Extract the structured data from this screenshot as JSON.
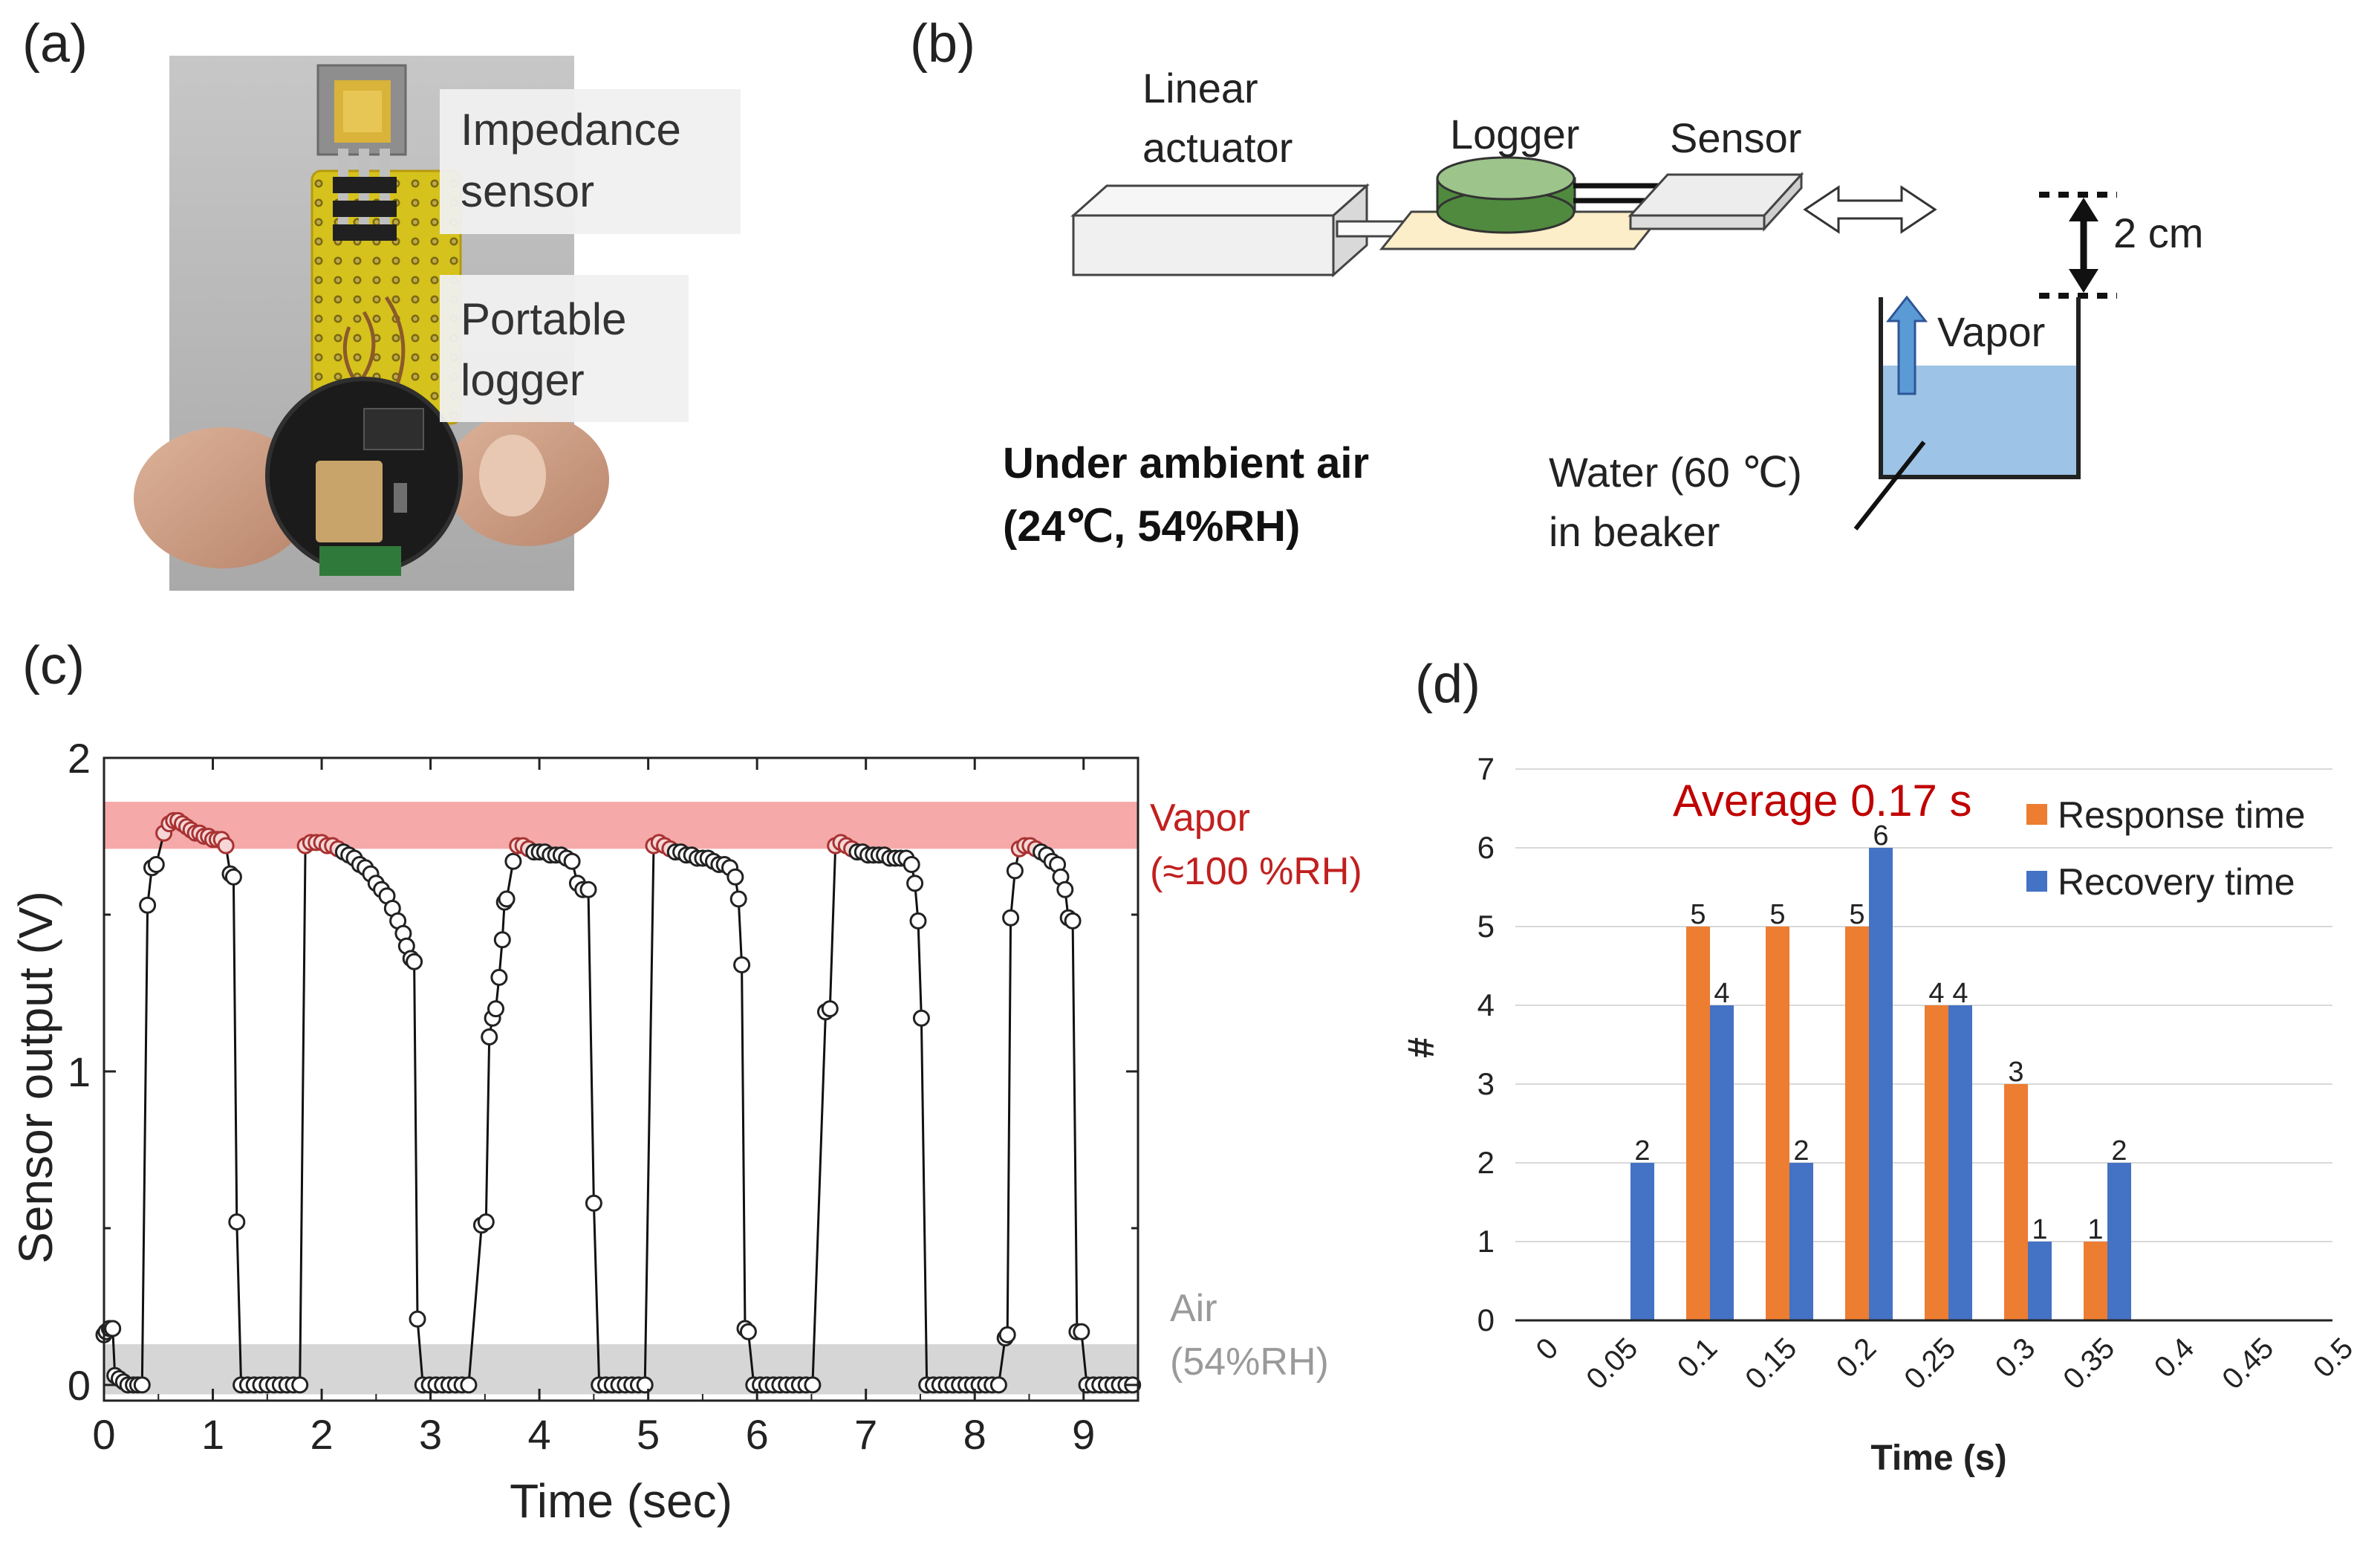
{
  "panels": {
    "a": "(a)",
    "b": "(b)",
    "c": "(c)",
    "d": "(d)"
  },
  "photo": {
    "label_sensor": [
      "Impedance",
      "sensor"
    ],
    "label_logger": [
      "Portable",
      "logger"
    ]
  },
  "setup": {
    "actuator": [
      "Linear",
      "actuator"
    ],
    "logger": "Logger",
    "sensor": "Sensor",
    "distance": "2 cm",
    "vapor": "Vapor",
    "water": [
      "Water (60 ℃)",
      "in beaker"
    ],
    "ambient": [
      "Under ambient air",
      "(24℃, 54%RH)"
    ]
  },
  "chart_data": [
    {
      "type": "scatter",
      "title": "",
      "xlabel": "Time (sec)",
      "ylabel": "Sensor output (V)",
      "xlim": [
        0,
        9.5
      ],
      "ylim": [
        -0.05,
        2
      ],
      "xticks": [
        0,
        1,
        2,
        3,
        4,
        5,
        6,
        7,
        8,
        9
      ],
      "yticks": [
        0,
        1,
        2
      ],
      "bands": [
        {
          "name": "Vapor",
          "sub": "(≈100 %RH)",
          "from": 1.71,
          "to": 1.86,
          "color": "#f4a0a0",
          "text_color": "#c0201f"
        },
        {
          "name": "Air",
          "sub": "(54%RH)",
          "from": -0.03,
          "to": 0.13,
          "color": "#cfcfcf",
          "text_color": "#9a9a9a"
        }
      ],
      "series": [
        {
          "name": "Sensor output",
          "points": [
            [
              0.0,
              0.16
            ],
            [
              0.02,
              0.17
            ],
            [
              0.05,
              0.18
            ],
            [
              0.08,
              0.18
            ],
            [
              0.1,
              0.03
            ],
            [
              0.14,
              0.02
            ],
            [
              0.18,
              0.01
            ],
            [
              0.22,
              0.0
            ],
            [
              0.27,
              0.0
            ],
            [
              0.31,
              0.0
            ],
            [
              0.35,
              0.0
            ],
            [
              0.4,
              1.53
            ],
            [
              0.44,
              1.65
            ],
            [
              0.48,
              1.66
            ],
            [
              0.55,
              1.76
            ],
            [
              0.6,
              1.79
            ],
            [
              0.64,
              1.8
            ],
            [
              0.68,
              1.8
            ],
            [
              0.72,
              1.79
            ],
            [
              0.76,
              1.78
            ],
            [
              0.8,
              1.77
            ],
            [
              0.84,
              1.76
            ],
            [
              0.88,
              1.76
            ],
            [
              0.92,
              1.75
            ],
            [
              0.96,
              1.75
            ],
            [
              1.0,
              1.74
            ],
            [
              1.04,
              1.74
            ],
            [
              1.08,
              1.74
            ],
            [
              1.12,
              1.72
            ],
            [
              1.16,
              1.63
            ],
            [
              1.19,
              1.62
            ],
            [
              1.22,
              0.52
            ],
            [
              1.26,
              0.0
            ],
            [
              1.32,
              0.0
            ],
            [
              1.38,
              0.0
            ],
            [
              1.44,
              0.0
            ],
            [
              1.5,
              0.0
            ],
            [
              1.56,
              0.0
            ],
            [
              1.62,
              0.0
            ],
            [
              1.68,
              0.0
            ],
            [
              1.74,
              0.0
            ],
            [
              1.8,
              0.0
            ],
            [
              1.85,
              1.72
            ],
            [
              1.9,
              1.73
            ],
            [
              1.95,
              1.73
            ],
            [
              2.0,
              1.73
            ],
            [
              2.05,
              1.72
            ],
            [
              2.1,
              1.72
            ],
            [
              2.15,
              1.71
            ],
            [
              2.2,
              1.7
            ],
            [
              2.25,
              1.69
            ],
            [
              2.3,
              1.68
            ],
            [
              2.35,
              1.66
            ],
            [
              2.4,
              1.65
            ],
            [
              2.45,
              1.63
            ],
            [
              2.5,
              1.6
            ],
            [
              2.55,
              1.58
            ],
            [
              2.6,
              1.56
            ],
            [
              2.65,
              1.52
            ],
            [
              2.7,
              1.48
            ],
            [
              2.75,
              1.44
            ],
            [
              2.78,
              1.4
            ],
            [
              2.82,
              1.36
            ],
            [
              2.85,
              1.35
            ],
            [
              2.88,
              0.21
            ],
            [
              2.93,
              0.0
            ],
            [
              2.99,
              0.0
            ],
            [
              3.05,
              0.0
            ],
            [
              3.11,
              0.0
            ],
            [
              3.17,
              0.0
            ],
            [
              3.23,
              0.0
            ],
            [
              3.29,
              0.0
            ],
            [
              3.35,
              0.0
            ],
            [
              3.47,
              0.51
            ],
            [
              3.51,
              0.52
            ],
            [
              3.54,
              1.11
            ],
            [
              3.57,
              1.17
            ],
            [
              3.6,
              1.2
            ],
            [
              3.63,
              1.3
            ],
            [
              3.66,
              1.42
            ],
            [
              3.68,
              1.54
            ],
            [
              3.7,
              1.55
            ],
            [
              3.76,
              1.67
            ],
            [
              3.8,
              1.72
            ],
            [
              3.85,
              1.72
            ],
            [
              3.9,
              1.71
            ],
            [
              3.95,
              1.7
            ],
            [
              4.0,
              1.7
            ],
            [
              4.05,
              1.7
            ],
            [
              4.1,
              1.69
            ],
            [
              4.15,
              1.69
            ],
            [
              4.2,
              1.69
            ],
            [
              4.25,
              1.68
            ],
            [
              4.3,
              1.67
            ],
            [
              4.35,
              1.6
            ],
            [
              4.4,
              1.58
            ],
            [
              4.45,
              1.58
            ],
            [
              4.5,
              0.58
            ],
            [
              4.55,
              0.0
            ],
            [
              4.61,
              0.0
            ],
            [
              4.67,
              0.0
            ],
            [
              4.73,
              0.0
            ],
            [
              4.79,
              0.0
            ],
            [
              4.85,
              0.0
            ],
            [
              4.91,
              0.0
            ],
            [
              4.97,
              0.0
            ],
            [
              5.05,
              1.72
            ],
            [
              5.1,
              1.73
            ],
            [
              5.15,
              1.72
            ],
            [
              5.2,
              1.71
            ],
            [
              5.25,
              1.7
            ],
            [
              5.3,
              1.7
            ],
            [
              5.35,
              1.69
            ],
            [
              5.4,
              1.69
            ],
            [
              5.45,
              1.68
            ],
            [
              5.5,
              1.68
            ],
            [
              5.55,
              1.68
            ],
            [
              5.6,
              1.67
            ],
            [
              5.65,
              1.66
            ],
            [
              5.7,
              1.66
            ],
            [
              5.75,
              1.65
            ],
            [
              5.8,
              1.62
            ],
            [
              5.83,
              1.55
            ],
            [
              5.86,
              1.34
            ],
            [
              5.89,
              0.18
            ],
            [
              5.92,
              0.17
            ],
            [
              5.97,
              0.0
            ],
            [
              6.03,
              0.0
            ],
            [
              6.09,
              0.0
            ],
            [
              6.15,
              0.0
            ],
            [
              6.21,
              0.0
            ],
            [
              6.27,
              0.0
            ],
            [
              6.33,
              0.0
            ],
            [
              6.39,
              0.0
            ],
            [
              6.45,
              0.0
            ],
            [
              6.51,
              0.0
            ],
            [
              6.63,
              1.19
            ],
            [
              6.67,
              1.2
            ],
            [
              6.72,
              1.72
            ],
            [
              6.77,
              1.73
            ],
            [
              6.82,
              1.72
            ],
            [
              6.87,
              1.71
            ],
            [
              6.92,
              1.7
            ],
            [
              6.97,
              1.7
            ],
            [
              7.02,
              1.69
            ],
            [
              7.07,
              1.69
            ],
            [
              7.12,
              1.69
            ],
            [
              7.17,
              1.69
            ],
            [
              7.22,
              1.68
            ],
            [
              7.27,
              1.68
            ],
            [
              7.32,
              1.68
            ],
            [
              7.37,
              1.68
            ],
            [
              7.42,
              1.66
            ],
            [
              7.45,
              1.6
            ],
            [
              7.48,
              1.48
            ],
            [
              7.51,
              1.17
            ],
            [
              7.56,
              0.0
            ],
            [
              7.62,
              0.0
            ],
            [
              7.68,
              0.0
            ],
            [
              7.74,
              0.0
            ],
            [
              7.8,
              0.0
            ],
            [
              7.86,
              0.0
            ],
            [
              7.92,
              0.0
            ],
            [
              7.98,
              0.0
            ],
            [
              8.04,
              0.0
            ],
            [
              8.1,
              0.0
            ],
            [
              8.16,
              0.0
            ],
            [
              8.22,
              0.0
            ],
            [
              8.28,
              0.15
            ],
            [
              8.3,
              0.16
            ],
            [
              8.33,
              1.49
            ],
            [
              8.37,
              1.64
            ],
            [
              8.41,
              1.71
            ],
            [
              8.46,
              1.72
            ],
            [
              8.51,
              1.72
            ],
            [
              8.56,
              1.71
            ],
            [
              8.61,
              1.7
            ],
            [
              8.66,
              1.69
            ],
            [
              8.71,
              1.67
            ],
            [
              8.76,
              1.66
            ],
            [
              8.79,
              1.62
            ],
            [
              8.83,
              1.58
            ],
            [
              8.86,
              1.49
            ],
            [
              8.9,
              1.48
            ],
            [
              8.94,
              0.17
            ],
            [
              8.98,
              0.17
            ],
            [
              9.03,
              0.0
            ],
            [
              9.09,
              0.0
            ],
            [
              9.15,
              0.0
            ],
            [
              9.21,
              0.0
            ],
            [
              9.27,
              0.0
            ],
            [
              9.33,
              0.0
            ],
            [
              9.39,
              0.0
            ],
            [
              9.45,
              0.0
            ]
          ]
        }
      ]
    },
    {
      "type": "bar",
      "title": "",
      "annotation": "Average 0.17 s",
      "xlabel": "Time (s)",
      "ylabel": "#",
      "ylim": [
        0,
        7
      ],
      "yticks": [
        0,
        1,
        2,
        3,
        4,
        5,
        6,
        7
      ],
      "categories": [
        "0",
        "0.05",
        "0.1",
        "0.15",
        "0.2",
        "0.25",
        "0.3",
        "0.35",
        "0.4",
        "0.45",
        "0.5"
      ],
      "series": [
        {
          "name": "Response time",
          "color": "#ed7d31",
          "values": [
            0,
            0,
            5,
            5,
            5,
            4,
            3,
            1,
            0,
            0,
            0
          ]
        },
        {
          "name": "Recovery time",
          "color": "#4472c4",
          "values": [
            0,
            2,
            4,
            2,
            6,
            4,
            1,
            2,
            0,
            0,
            0
          ]
        }
      ]
    }
  ]
}
